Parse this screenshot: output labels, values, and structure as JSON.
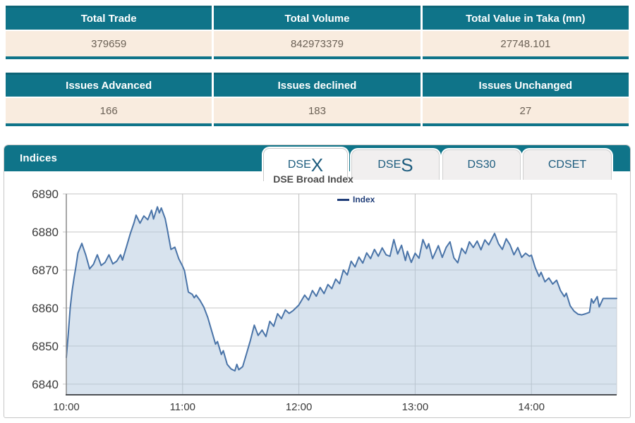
{
  "colors": {
    "accent_teal": "#0f7489",
    "row_cream": "#f9ecdf",
    "value_text": "#6b6156",
    "tab_text": "#1d5c7e",
    "chart_line": "#4a74a8",
    "chart_fill": "rgba(177,199,222,0.5)",
    "legend_navy": "#1f3d78"
  },
  "summary_table": {
    "headers": [
      "Total Trade",
      "Total Volume",
      "Total Value in Taka (mn)"
    ],
    "values": [
      "379659",
      "842973379",
      "27748.101"
    ]
  },
  "issues_table": {
    "headers": [
      "Issues Advanced",
      "Issues declined",
      "Issues Unchanged"
    ],
    "values": [
      "166",
      "183",
      "27"
    ]
  },
  "indices": {
    "title": "Indices",
    "tabs": [
      {
        "label": "DSEX",
        "prefix": "DSE",
        "suffix": "X",
        "active": true
      },
      {
        "label": "DSES",
        "prefix": "DSE",
        "suffix": "S",
        "active": false
      },
      {
        "label": "DS30",
        "prefix": "DS30",
        "suffix": "",
        "active": false
      },
      {
        "label": "CDSET",
        "prefix": "CDSET",
        "suffix": "",
        "active": false
      }
    ],
    "chart_title": "DSE Broad Index",
    "legend": "Index"
  },
  "chart_data": {
    "type": "area",
    "title": "DSE Broad Index",
    "legend_entries": [
      "Index"
    ],
    "legend_position": "top-center",
    "grid": true,
    "x_unit": "minutes since 10:00",
    "xlim": [
      0,
      284
    ],
    "ylim": [
      6837.2,
      6890
    ],
    "yticks": [
      6890,
      6880,
      6870,
      6860,
      6850,
      6840
    ],
    "xticks": [
      {
        "t": 0,
        "label": "10:00"
      },
      {
        "t": 60,
        "label": "11:00"
      },
      {
        "t": 120,
        "label": "12:00"
      },
      {
        "t": 180,
        "label": "13:00"
      },
      {
        "t": 240,
        "label": "14:00"
      }
    ],
    "series": [
      {
        "name": "Index",
        "points": [
          [
            0,
            6847
          ],
          [
            1,
            6853
          ],
          [
            2,
            6860
          ],
          [
            3,
            6864.5
          ],
          [
            4,
            6868
          ],
          [
            5,
            6871
          ],
          [
            6,
            6874.5
          ],
          [
            8,
            6877
          ],
          [
            9,
            6875.5
          ],
          [
            10,
            6874
          ],
          [
            12,
            6870.3
          ],
          [
            14,
            6871.5
          ],
          [
            16,
            6874
          ],
          [
            18,
            6871.2
          ],
          [
            20,
            6872
          ],
          [
            22,
            6874
          ],
          [
            24,
            6871.6
          ],
          [
            26,
            6872.3
          ],
          [
            28,
            6874
          ],
          [
            29,
            6872.6
          ],
          [
            31,
            6876
          ],
          [
            33,
            6879.5
          ],
          [
            35,
            6882.5
          ],
          [
            36,
            6884.4
          ],
          [
            38,
            6882.3
          ],
          [
            40,
            6884.2
          ],
          [
            42,
            6883.2
          ],
          [
            44,
            6885.7
          ],
          [
            45,
            6883.4
          ],
          [
            47,
            6886.6
          ],
          [
            48,
            6885
          ],
          [
            49,
            6886.3
          ],
          [
            51,
            6883.5
          ],
          [
            52,
            6881
          ],
          [
            54,
            6875.4
          ],
          [
            56,
            6876
          ],
          [
            58,
            6873
          ],
          [
            60,
            6871
          ],
          [
            61,
            6869.8
          ],
          [
            63,
            6864.2
          ],
          [
            65,
            6863.6
          ],
          [
            66,
            6862.7
          ],
          [
            67,
            6863.4
          ],
          [
            69,
            6862
          ],
          [
            71,
            6860.2
          ],
          [
            73,
            6857.5
          ],
          [
            75,
            6854
          ],
          [
            77,
            6850.5
          ],
          [
            78,
            6851.2
          ],
          [
            80,
            6847.8
          ],
          [
            81,
            6848.8
          ],
          [
            83,
            6845.2
          ],
          [
            85,
            6844
          ],
          [
            87,
            6843.5
          ],
          [
            88,
            6845.2
          ],
          [
            89,
            6843.8
          ],
          [
            91,
            6844.6
          ],
          [
            93,
            6848
          ],
          [
            95,
            6851.5
          ],
          [
            97,
            6855.5
          ],
          [
            99,
            6852.8
          ],
          [
            101,
            6854.2
          ],
          [
            103,
            6852.5
          ],
          [
            105,
            6856.5
          ],
          [
            107,
            6855.2
          ],
          [
            109,
            6858.5
          ],
          [
            111,
            6857.2
          ],
          [
            113,
            6859.5
          ],
          [
            115,
            6858.6
          ],
          [
            117,
            6859.3
          ],
          [
            120,
            6860.8
          ],
          [
            123,
            6863.4
          ],
          [
            125,
            6862.1
          ],
          [
            127,
            6864.6
          ],
          [
            129,
            6863.1
          ],
          [
            131,
            6865.4
          ],
          [
            133,
            6863.8
          ],
          [
            135,
            6866.2
          ],
          [
            137,
            6865.1
          ],
          [
            139,
            6867.6
          ],
          [
            141,
            6866.4
          ],
          [
            143,
            6870
          ],
          [
            145,
            6868.7
          ],
          [
            147,
            6872.3
          ],
          [
            149,
            6870.8
          ],
          [
            151,
            6873.4
          ],
          [
            153,
            6871.8
          ],
          [
            155,
            6874.5
          ],
          [
            157,
            6873
          ],
          [
            159,
            6875.4
          ],
          [
            161,
            6873.6
          ],
          [
            163,
            6875.8
          ],
          [
            165,
            6874
          ],
          [
            167,
            6873.6
          ],
          [
            169,
            6878
          ],
          [
            171,
            6874.2
          ],
          [
            173,
            6876.5
          ],
          [
            175,
            6872.5
          ],
          [
            176,
            6874.9
          ],
          [
            178,
            6872
          ],
          [
            180,
            6874.4
          ],
          [
            182,
            6873.1
          ],
          [
            184,
            6878
          ],
          [
            186,
            6875.6
          ],
          [
            187,
            6876.9
          ],
          [
            189,
            6873
          ],
          [
            192,
            6876.4
          ],
          [
            194,
            6873.3
          ],
          [
            196,
            6875.9
          ],
          [
            198,
            6877.4
          ],
          [
            200,
            6873.2
          ],
          [
            202,
            6871.9
          ],
          [
            204,
            6875.7
          ],
          [
            206,
            6874.3
          ],
          [
            208,
            6877.4
          ],
          [
            210,
            6875.9
          ],
          [
            212,
            6877.6
          ],
          [
            214,
            6875.3
          ],
          [
            216,
            6877.9
          ],
          [
            218,
            6876.6
          ],
          [
            221,
            6879.6
          ],
          [
            223,
            6876.9
          ],
          [
            225,
            6875.4
          ],
          [
            227,
            6878.2
          ],
          [
            229,
            6876.6
          ],
          [
            231,
            6874
          ],
          [
            233,
            6875.9
          ],
          [
            235,
            6873.3
          ],
          [
            237,
            6874.4
          ],
          [
            239,
            6873.6
          ],
          [
            240,
            6873.9
          ],
          [
            242,
            6870.6
          ],
          [
            244,
            6868.3
          ],
          [
            245,
            6869.4
          ],
          [
            247,
            6866.9
          ],
          [
            249,
            6867.9
          ],
          [
            251,
            6866.3
          ],
          [
            253,
            6867.3
          ],
          [
            255,
            6864.6
          ],
          [
            257,
            6863
          ],
          [
            258,
            6863.9
          ],
          [
            260,
            6860.6
          ],
          [
            262,
            6859.2
          ],
          [
            264,
            6858.4
          ],
          [
            266,
            6858.2
          ],
          [
            268,
            6858.5
          ],
          [
            270,
            6858.9
          ],
          [
            271,
            6862.4
          ],
          [
            272,
            6861.3
          ],
          [
            274,
            6863
          ],
          [
            275,
            6860.3
          ],
          [
            277,
            6862.5
          ],
          [
            284,
            6862.5
          ]
        ]
      }
    ]
  }
}
